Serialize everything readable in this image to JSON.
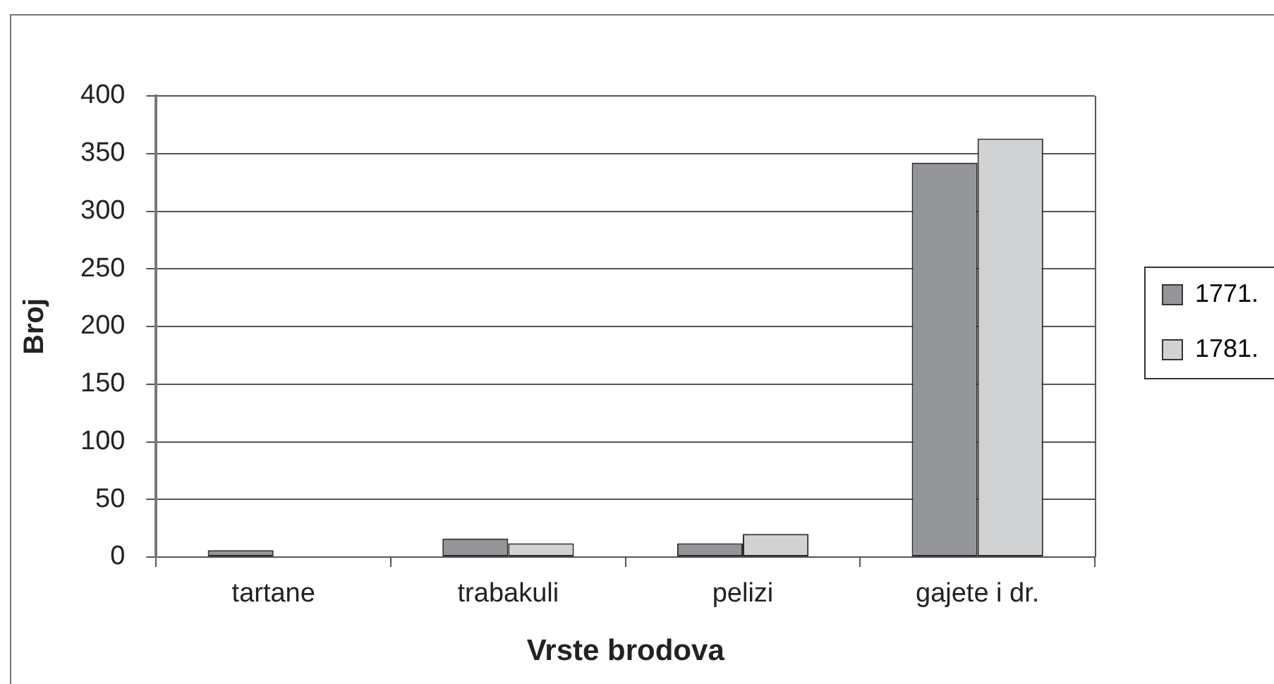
{
  "chart_data": {
    "type": "bar",
    "xlabel": "Vrste brodova",
    "ylabel": "Broj",
    "categories": [
      "tartane",
      "trabakuli",
      "pelizi",
      "gajete i dr."
    ],
    "series": [
      {
        "name": "1771.",
        "color": "#939598",
        "values": [
          6,
          16,
          12,
          342
        ]
      },
      {
        "name": "1781.",
        "color": "#d1d2d4",
        "values": [
          0,
          12,
          20,
          363
        ]
      }
    ],
    "ylim": [
      0,
      400
    ],
    "yticks": [
      0,
      50,
      100,
      150,
      200,
      250,
      300,
      350,
      400
    ],
    "grid": "y",
    "legend": "right"
  }
}
